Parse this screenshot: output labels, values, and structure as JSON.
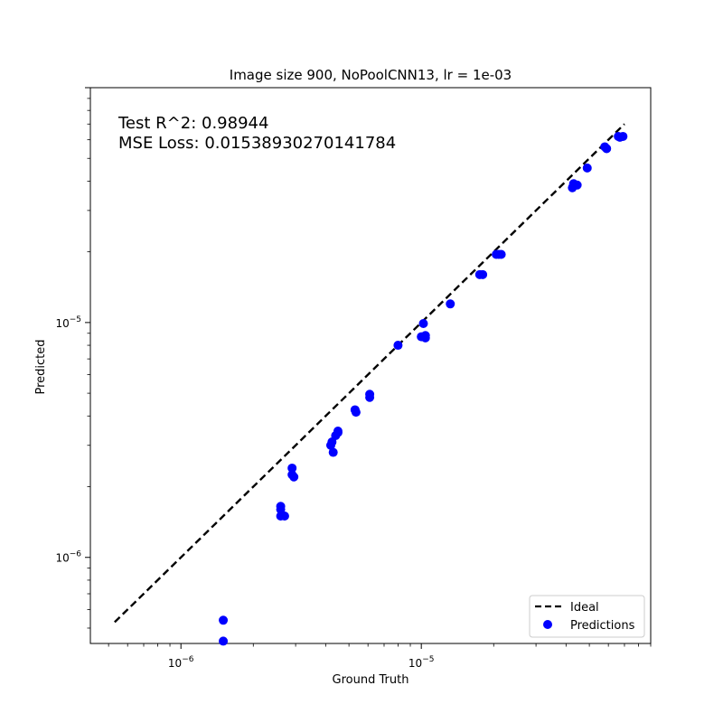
{
  "chart_data": {
    "type": "scatter",
    "title": "Image size 900, NoPoolCNN13, lr = 1e-03",
    "xlabel": "Ground Truth",
    "ylabel": "Predicted",
    "xscale": "log",
    "yscale": "log",
    "xlim": [
      4.2e-07,
      9e-05
    ],
    "ylim": [
      4.3e-07,
      0.0001
    ],
    "x_ticks": [
      {
        "value": 1e-06,
        "label": "10^-6"
      },
      {
        "value": 1e-05,
        "label": "10^-5"
      }
    ],
    "y_ticks": [
      {
        "value": 1e-06,
        "label": "10^-6"
      },
      {
        "value": 1e-05,
        "label": "10^-5"
      }
    ],
    "annotations": [
      "Test R^2: 0.98944",
      "MSE Loss: 0.01538930270141784"
    ],
    "legend": {
      "position": "lower right",
      "entries": [
        {
          "label": "Ideal",
          "style": "dashed-line",
          "color": "#000000"
        },
        {
          "label": "Predictions",
          "style": "marker",
          "color": "#0000ff"
        }
      ]
    },
    "series": [
      {
        "name": "Ideal",
        "kind": "line",
        "x": [
          5.3e-07,
          7e-05
        ],
        "y": [
          5.3e-07,
          7e-05
        ]
      },
      {
        "name": "Predictions",
        "kind": "scatter",
        "x": [
          1.5e-06,
          1.5e-06,
          2.6e-06,
          2.6e-06,
          2.6e-06,
          2.7e-06,
          2.9e-06,
          2.9e-06,
          2.95e-06,
          4.2e-06,
          4.25e-06,
          4.3e-06,
          4.4e-06,
          4.5e-06,
          4.5e-06,
          5.3e-06,
          5.35e-06,
          6.1e-06,
          6.1e-06,
          8e-06,
          1e-05,
          1.02e-05,
          1.04e-05,
          1.04e-05,
          1.32e-05,
          1.75e-05,
          1.8e-05,
          2.05e-05,
          2.1e-05,
          2.15e-05,
          4.25e-05,
          4.3e-05,
          4.45e-05,
          4.9e-05,
          5.8e-05,
          5.9e-05,
          6.6e-05,
          6.7e-05,
          6.9e-05
        ],
        "y": [
          5.4e-07,
          4.4e-07,
          1.6e-06,
          1.65e-06,
          1.5e-06,
          1.5e-06,
          2.4e-06,
          2.25e-06,
          2.2e-06,
          3e-06,
          3.1e-06,
          2.8e-06,
          3.3e-06,
          3.4e-06,
          3.45e-06,
          4.25e-06,
          4.15e-06,
          4.8e-06,
          4.95e-06,
          8e-06,
          8.7e-06,
          9.9e-06,
          8.6e-06,
          8.8e-06,
          1.2e-05,
          1.6e-05,
          1.6e-05,
          1.95e-05,
          1.95e-05,
          1.95e-05,
          3.75e-05,
          3.9e-05,
          3.85e-05,
          4.55e-05,
          5.6e-05,
          5.5e-05,
          6.2e-05,
          6.15e-05,
          6.2e-05
        ]
      }
    ]
  },
  "colors": {
    "marker": "#0000ff",
    "ideal_line": "#000000",
    "background": "#ffffff"
  }
}
